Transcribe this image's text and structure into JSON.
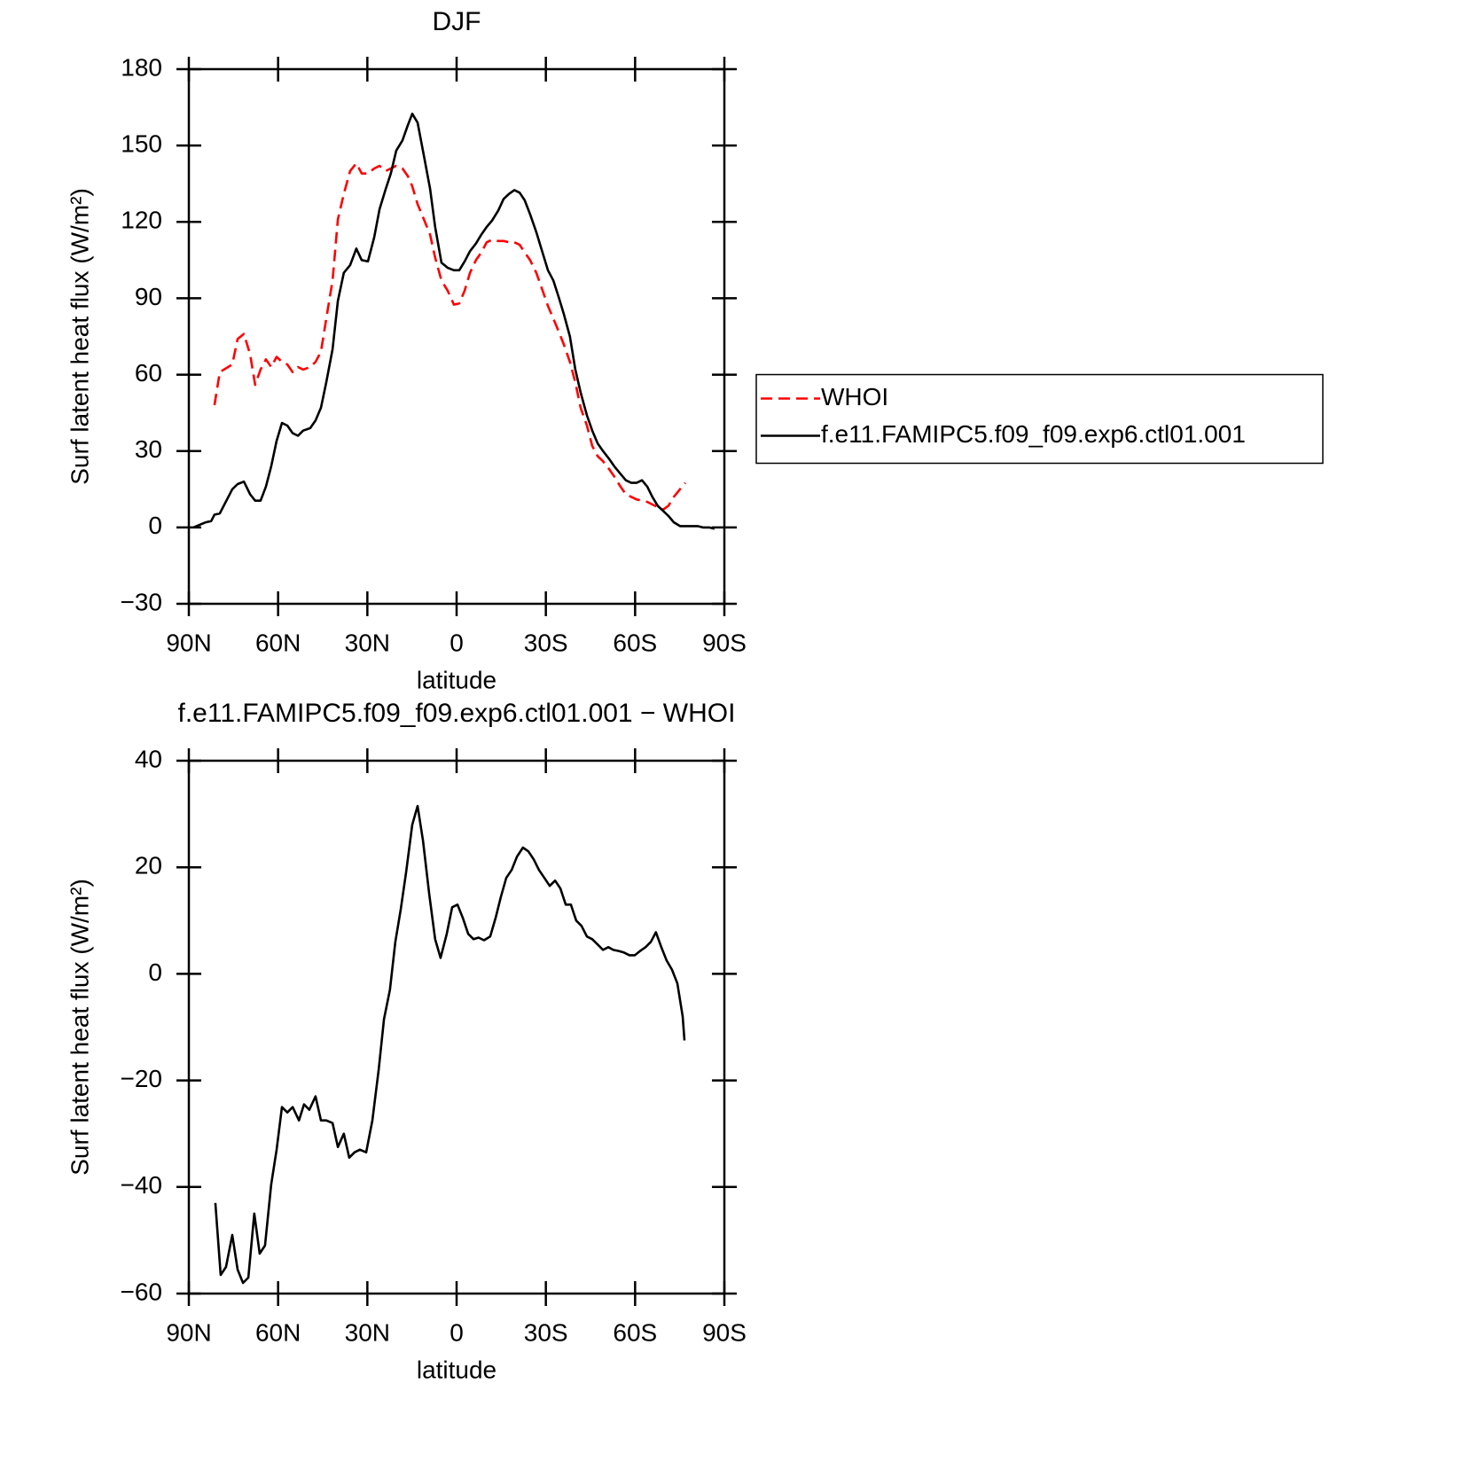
{
  "chart_data": [
    {
      "type": "line",
      "title": "DJF",
      "xlabel": "latitude",
      "ylabel": "Surf latent heat flux (W/m²)",
      "xlim": [
        90,
        -90
      ],
      "xticks": [
        {
          "value": 90,
          "label": "90N"
        },
        {
          "value": 60,
          "label": "60N"
        },
        {
          "value": 30,
          "label": "30N"
        },
        0,
        {
          "value": -30,
          "label": "30S"
        },
        {
          "value": -60,
          "label": "60S"
        },
        {
          "value": -90,
          "label": "90S"
        }
      ],
      "ylim": [
        -30,
        180
      ],
      "yticks": [
        {
          "value": -30,
          "label": "−30"
        },
        0,
        30,
        60,
        90,
        120,
        150,
        180
      ],
      "legend": "right",
      "x": [
        88.5,
        84.3,
        82.5,
        81.4,
        79.6,
        75.4,
        73.6,
        71.5,
        69.4,
        67.7,
        65.9,
        64.1,
        62.3,
        60.5,
        58.7,
        56.9,
        55.1,
        53.3,
        51.6,
        49.2,
        47.4,
        45.6,
        43.8,
        41.7,
        39.9,
        37.9,
        35.8,
        33.7,
        31.9,
        29.8,
        27.7,
        25.9,
        23.8,
        22.1,
        20.3,
        18.2,
        16.4,
        14.9,
        13.1,
        11.0,
        8.9,
        7.2,
        5.1,
        3.0,
        0.9,
        -0.9,
        -2.7,
        -4.5,
        -6.5,
        -8.3,
        -10.1,
        -11.9,
        -14.0,
        -15.8,
        -17.6,
        -19.4,
        -21.2,
        -22.9,
        -24.7,
        -26.8,
        -28.6,
        -30.7,
        -32.5,
        -34.3,
        -36.0,
        -38.1,
        -39.9,
        -41.7,
        -43.8,
        -45.6,
        -47.4,
        -49.2,
        -51.2,
        -53.0,
        -55.1,
        -56.9,
        -58.7,
        -60.5,
        -62.3,
        -64.1,
        -65.8,
        -67.6,
        -69.4,
        -71.2,
        -73.0,
        -75.1,
        -76.9,
        -79.0,
        -81.0,
        -82.8,
        -84.9,
        -86.7
      ],
      "series": [
        {
          "name": "WHOI",
          "color": "#ff0000",
          "dashed": true,
          "values": [
            null,
            null,
            null,
            48,
            61,
            64,
            74,
            76,
            68,
            56,
            62,
            66,
            63,
            67,
            65,
            64,
            61,
            63,
            62,
            63,
            65,
            69,
            82,
            97,
            121,
            131,
            140,
            143,
            139,
            139,
            141,
            142,
            140,
            141,
            142,
            141,
            138,
            134,
            127,
            121,
            115,
            106,
            97,
            93,
            87.5,
            88,
            93,
            100,
            105,
            108,
            112,
            113,
            112.5,
            112.5,
            112,
            112,
            111,
            108,
            105,
            100,
            94,
            87,
            82,
            77,
            72,
            65,
            57,
            47,
            40,
            32,
            28,
            26,
            23,
            20,
            16,
            13,
            12,
            11,
            10.5,
            10,
            9,
            8,
            7,
            8.5,
            12,
            15,
            17.5,
            null,
            null,
            null,
            null,
            null
          ]
        },
        {
          "name": "f.e11.FAMIPC5.f09_f09.exp6.ctl01.001",
          "color": "#000000",
          "dashed": false,
          "values": [
            0,
            2,
            2.5,
            5,
            5.5,
            15,
            17,
            18,
            13,
            10.5,
            10.5,
            16,
            24,
            34,
            41,
            40,
            37,
            36,
            38,
            39,
            42,
            47,
            57,
            70,
            89,
            100,
            103,
            109.5,
            105,
            104.5,
            114,
            125,
            133,
            139,
            148,
            152,
            158,
            162.5,
            159,
            146,
            133,
            118,
            104,
            102,
            101,
            101,
            104.5,
            108.5,
            111.5,
            115,
            118,
            120.5,
            124.5,
            129,
            131,
            132.5,
            131.5,
            128.5,
            123,
            116,
            109,
            101,
            97,
            90.5,
            84,
            75,
            62,
            53,
            44,
            38,
            33,
            30,
            27,
            24,
            21,
            18.5,
            17.5,
            17.5,
            18.5,
            16,
            12,
            8.5,
            6.5,
            4.5,
            2,
            0.5,
            0.5,
            0.5,
            0.5,
            0,
            0,
            -0.5
          ]
        }
      ]
    },
    {
      "type": "line",
      "title": "f.e11.FAMIPC5.f09_f09.exp6.ctl01.001 − WHOI",
      "xlabel": "latitude",
      "ylabel": "Surf latent heat flux (W/m²)",
      "xlim": [
        90,
        -90
      ],
      "xticks": [
        {
          "value": 90,
          "label": "90N"
        },
        {
          "value": 60,
          "label": "60N"
        },
        {
          "value": 30,
          "label": "30N"
        },
        0,
        {
          "value": -30,
          "label": "30S"
        },
        {
          "value": -60,
          "label": "60S"
        },
        {
          "value": -90,
          "label": "90S"
        }
      ],
      "ylim": [
        -60,
        40
      ],
      "yticks": [
        {
          "value": -60,
          "label": "−60"
        },
        {
          "value": -40,
          "label": "−40"
        },
        {
          "value": -20,
          "label": "−20"
        },
        0,
        20,
        40
      ],
      "x": [
        81.1,
        79.3,
        77.5,
        75.4,
        73.6,
        71.8,
        70.0,
        68.0,
        66.2,
        64.4,
        62.3,
        60.5,
        58.7,
        56.9,
        55.1,
        53.0,
        51.3,
        49.5,
        47.4,
        45.6,
        43.8,
        41.7,
        39.9,
        37.9,
        36.1,
        34.3,
        32.5,
        30.4,
        28.3,
        26.2,
        24.4,
        22.4,
        20.6,
        18.8,
        17.0,
        14.9,
        13.1,
        11.3,
        9.2,
        7.2,
        5.4,
        3.3,
        1.5,
        -0.3,
        -2.1,
        -3.9,
        -5.7,
        -7.4,
        -9.2,
        -11.3,
        -13.1,
        -14.9,
        -16.7,
        -18.5,
        -20.3,
        -22.3,
        -24.1,
        -25.9,
        -27.7,
        -29.5,
        -31.3,
        -33.1,
        -34.9,
        -36.7,
        -38.4,
        -40.2,
        -42.0,
        -43.8,
        -45.6,
        -47.4,
        -49.2,
        -51.0,
        -52.7,
        -54.5,
        -56.3,
        -58.1,
        -59.9,
        -61.7,
        -63.5,
        -65.3,
        -67.0,
        -68.8,
        -70.6,
        -72.4,
        -74.2,
        -76.0,
        -76.6
      ],
      "color": "#000000",
      "values": [
        -43,
        -56.5,
        -55,
        -49,
        -55.5,
        -58,
        -57,
        -45,
        -52.5,
        -51,
        -39.5,
        -33,
        -25,
        -26,
        -25,
        -27.5,
        -24.5,
        -25.5,
        -23,
        -27.5,
        -27.5,
        -28,
        -32.5,
        -30,
        -34.5,
        -33.5,
        -33,
        -33.5,
        -27.5,
        -18,
        -8.5,
        -3,
        6,
        12,
        19,
        28,
        31.5,
        25,
        15,
        6.5,
        3,
        7.5,
        12.5,
        13,
        10.5,
        7.5,
        6.5,
        6.8,
        6.3,
        7,
        10.5,
        14.5,
        18,
        19.5,
        22,
        23.7,
        23,
        21.5,
        19.5,
        18,
        16.5,
        17.5,
        16,
        13,
        13,
        10,
        9,
        7,
        6.5,
        5.5,
        4.5,
        5,
        4.5,
        4.3,
        4,
        3.5,
        3.5,
        4.3,
        5,
        6,
        7.8,
        5,
        2.5,
        0.8,
        -1.8,
        -8,
        -12.5
      ]
    }
  ]
}
